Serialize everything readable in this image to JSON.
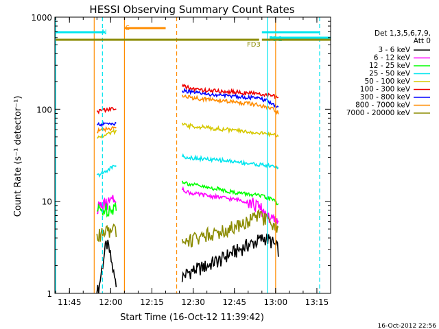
{
  "chart_data": {
    "type": "line",
    "title": "HESSI Observing Summary Count Rates",
    "xlabel": "Start Time (16-Oct-12 11:39:42)",
    "ylabel": "Count Rate (s⁻¹ detector⁻¹)",
    "yscale": "log",
    "xlim": [
      "11:39:42",
      "13:20:00"
    ],
    "ylim": [
      1,
      1000
    ],
    "xticks": [
      "11:45",
      "12:00",
      "12:15",
      "12:30",
      "12:45",
      "13:00",
      "13:15"
    ],
    "yticks": [
      "1",
      "10",
      "100",
      "1000"
    ],
    "legend": {
      "placement": "right",
      "header": [
        "Det 1,3,5,6,7,9,",
        "Att 0"
      ],
      "entries": [
        {
          "label": "3 - 6 keV",
          "color": "#000000"
        },
        {
          "label": "6 - 12 keV",
          "color": "#ff00ff"
        },
        {
          "label": "12 - 25 keV",
          "color": "#00ff00"
        },
        {
          "label": "25 - 50 keV",
          "color": "#00e5ee"
        },
        {
          "label": "50 - 100 keV",
          "color": "#d6c800"
        },
        {
          "label": "100 - 300 keV",
          "color": "#ee0000"
        },
        {
          "label": "300 - 800 keV",
          "color": "#0000ff"
        },
        {
          "label": "800 - 7000 keV",
          "color": "#ff8c00"
        },
        {
          "label": "7000 - 20000 keV",
          "color": "#8b8b00"
        }
      ]
    },
    "flags": [
      {
        "label": "N",
        "color": "#00e5ee",
        "segments": [
          [
            "11:40",
            "11:58"
          ],
          [
            "12:55",
            "13:16"
          ]
        ]
      },
      {
        "label": "S",
        "color": "#ff8c00",
        "segments": [
          [
            "12:05",
            "12:20"
          ]
        ]
      },
      {
        "label": "FD2",
        "color": "#00e5ee",
        "segments": [
          [
            "12:58",
            "13:20"
          ]
        ]
      },
      {
        "label": "FD3",
        "color": "#8b8b00",
        "segments": [
          [
            "11:40",
            "12:54"
          ],
          [
            "12:55",
            "13:20"
          ]
        ]
      }
    ],
    "vlines": [
      {
        "time": "11:40",
        "color": "#00e5ee",
        "style": "solid"
      },
      {
        "time": "11:57",
        "color": "#00e5ee",
        "style": "dashed"
      },
      {
        "time": "11:54",
        "color": "#ff8c00",
        "style": "solid"
      },
      {
        "time": "12:05",
        "color": "#ff8c00",
        "style": "solid"
      },
      {
        "time": "12:24",
        "color": "#ff8c00",
        "style": "dashed"
      },
      {
        "time": "12:57",
        "color": "#00e5ee",
        "style": "solid"
      },
      {
        "time": "13:00",
        "color": "#ff8c00",
        "style": "solid"
      },
      {
        "time": "13:16",
        "color": "#00e5ee",
        "style": "dashed"
      }
    ],
    "series": [
      {
        "name": "3 - 6 keV",
        "color": "#000000",
        "segments": [
          {
            "start": "11:55",
            "end": "12:02",
            "values": [
              1.0,
              1.2,
              1.8,
              2.6,
              3.5,
              3.0,
              2.2,
              1.6,
              1.2
            ]
          },
          {
            "start": "12:26",
            "end": "13:01",
            "values": [
              1.5,
              1.7,
              1.8,
              1.9,
              2.0,
              2.2,
              2.3,
              2.6,
              2.8,
              3.0,
              3.3,
              3.5,
              3.8,
              4.0,
              3.6,
              3.0
            ]
          }
        ]
      },
      {
        "name": "6 - 12 keV",
        "color": "#ff00ff",
        "segments": [
          {
            "start": "11:55",
            "end": "12:02",
            "values": [
              8.5,
              8.8,
              9.0,
              9.2,
              9.5,
              9.8,
              10.0,
              10.2
            ]
          },
          {
            "start": "12:26",
            "end": "13:01",
            "values": [
              13.5,
              12.5,
              12.0,
              11.8,
              11.5,
              11.2,
              11.0,
              10.8,
              10.5,
              10.3,
              10.0,
              9.5,
              8.5,
              7.5,
              6.2,
              5.8
            ]
          }
        ]
      },
      {
        "name": "12 - 25 keV",
        "color": "#00ff00",
        "segments": [
          {
            "start": "11:55",
            "end": "12:02",
            "values": [
              7.8,
              8.0,
              8.0,
              8.2,
              8.3,
              8.5,
              8.7,
              9.0
            ]
          },
          {
            "start": "12:26",
            "end": "13:01",
            "values": [
              16.5,
              15.5,
              15.0,
              14.5,
              14.0,
              13.8,
              13.5,
              13.0,
              12.5,
              12.3,
              12.0,
              11.8,
              11.5,
              11.0,
              10.5,
              9.5
            ]
          }
        ]
      },
      {
        "name": "25 - 50 keV",
        "color": "#00e5ee",
        "segments": [
          {
            "start": "11:55",
            "end": "12:02",
            "values": [
              19,
              19.5,
              20,
              21,
              22,
              23,
              24,
              25
            ]
          },
          {
            "start": "12:26",
            "end": "13:01",
            "values": [
              31,
              30,
              29.5,
              29,
              28.5,
              28,
              28,
              27.5,
              27,
              26.5,
              26,
              25.5,
              25,
              24.5,
              24,
              23.5
            ]
          }
        ]
      },
      {
        "name": "50 - 100 keV",
        "color": "#d6c800",
        "segments": [
          {
            "start": "11:55",
            "end": "12:02",
            "values": [
              48,
              50,
              51,
              52,
              54,
              55,
              57,
              58
            ]
          },
          {
            "start": "12:26",
            "end": "13:01",
            "values": [
              68,
              66,
              65,
              64,
              63,
              62,
              61,
              60,
              59,
              58,
              57,
              56,
              55,
              54,
              53,
              52
            ]
          }
        ]
      },
      {
        "name": "100 - 300 keV",
        "color": "#ee0000",
        "segments": [
          {
            "start": "11:55",
            "end": "12:02",
            "values": [
              95,
              96,
              97,
              98,
              99,
              100,
              101,
              102
            ]
          },
          {
            "start": "12:26",
            "end": "13:01",
            "values": [
              180,
              170,
              165,
              162,
              160,
              158,
              156,
              155,
              154,
              152,
              150,
              148,
              146,
              144,
              140,
              130
            ]
          }
        ]
      },
      {
        "name": "300 - 800 keV",
        "color": "#0000ff",
        "segments": [
          {
            "start": "11:55",
            "end": "12:02",
            "values": [
              68,
              68,
              69,
              69,
              70,
              70,
              70,
              70
            ]
          },
          {
            "start": "12:26",
            "end": "13:01",
            "values": [
              160,
              155,
              150,
              148,
              145,
              143,
              141,
              140,
              139,
              137,
              135,
              133,
              130,
              125,
              115,
              105
            ]
          }
        ]
      },
      {
        "name": "800 - 7000 keV",
        "color": "#ff8c00",
        "segments": [
          {
            "start": "11:55",
            "end": "12:02",
            "values": [
              58,
              59,
              60,
              60,
              61,
              62,
              62,
              63
            ]
          },
          {
            "start": "12:26",
            "end": "13:01",
            "values": [
              140,
              135,
              132,
              130,
              128,
              126,
              124,
              122,
              120,
              118,
              116,
              113,
              110,
              105,
              100,
              92
            ]
          }
        ]
      },
      {
        "name": "7000 - 20000 keV",
        "color": "#8b8b00",
        "segments": [
          {
            "start": "11:55",
            "end": "12:02",
            "values": [
              4.2,
              4.3,
              4.5,
              4.6,
              4.7,
              4.8,
              4.8,
              4.8
            ]
          },
          {
            "start": "12:26",
            "end": "13:01",
            "values": [
              3.6,
              3.8,
              4.0,
              4.2,
              4.4,
              4.6,
              4.8,
              5.0,
              5.3,
              5.6,
              6.0,
              6.5,
              7.0,
              6.5,
              5.5,
              4.8
            ]
          }
        ]
      }
    ],
    "footer": "16-Oct-2012 22:56"
  }
}
